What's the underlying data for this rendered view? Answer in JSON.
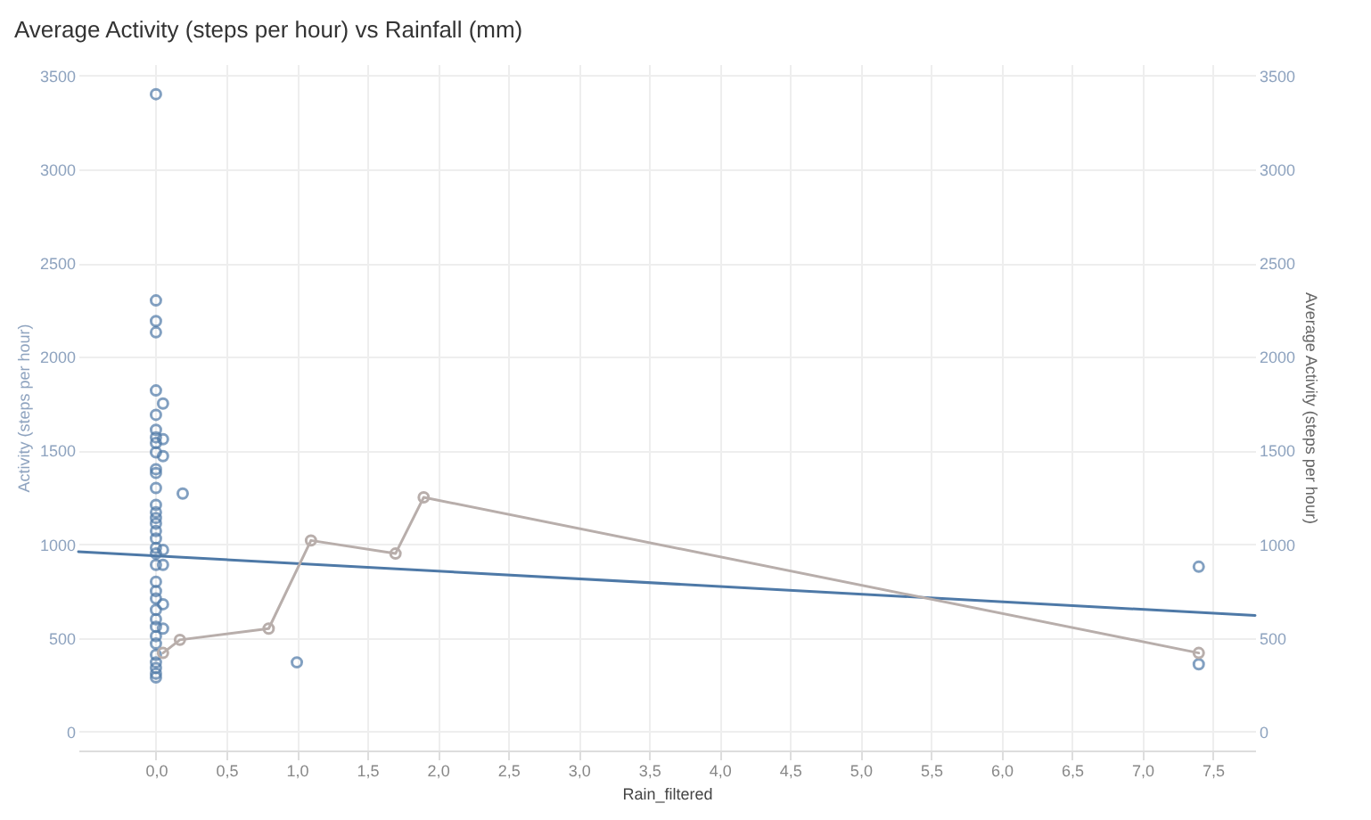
{
  "chart_data": {
    "type": "scatter",
    "title": "Average Activity (steps per hour) vs Rainfall (mm)",
    "xlabel": "Rain_filtered",
    "ylabel": "Activity (steps per hour)",
    "y2label": "Average Activity (steps per hour)",
    "xlim": [
      -0.55,
      7.8
    ],
    "xticks": [
      {
        "value": 0,
        "label": "0,0"
      },
      {
        "value": 0.5,
        "label": "0,5"
      },
      {
        "value": 1,
        "label": "1,0"
      },
      {
        "value": 1.5,
        "label": "1,5"
      },
      {
        "value": 2,
        "label": "2,0"
      },
      {
        "value": 2.5,
        "label": "2,5"
      },
      {
        "value": 3,
        "label": "3,0"
      },
      {
        "value": 3.5,
        "label": "3,5"
      },
      {
        "value": 4,
        "label": "4,0"
      },
      {
        "value": 4.5,
        "label": "4,5"
      },
      {
        "value": 5,
        "label": "5,0"
      },
      {
        "value": 5.5,
        "label": "5,5"
      },
      {
        "value": 6,
        "label": "6,0"
      },
      {
        "value": 6.5,
        "label": "6,5"
      },
      {
        "value": 7,
        "label": "7,0"
      },
      {
        "value": 7.5,
        "label": "7,5"
      }
    ],
    "ylim": [
      -100,
      3560
    ],
    "yticks": [
      0,
      500,
      1000,
      1500,
      2000,
      2500,
      3000,
      3500
    ],
    "y2lim": [
      -100,
      3560
    ],
    "y2ticks": [
      0,
      500,
      1000,
      1500,
      2000,
      2500,
      3000,
      3500
    ],
    "grid": true,
    "marker": "circle",
    "series": [
      {
        "color": "#4e79a7",
        "x": [
          0,
          0,
          0,
          0,
          0,
          0,
          0,
          0,
          0,
          0,
          0,
          0,
          0,
          0,
          0,
          0,
          0,
          0,
          0,
          0,
          0,
          0,
          0,
          0,
          0,
          0,
          0,
          0,
          0,
          0,
          0,
          0,
          0,
          0,
          0,
          0.05,
          0.05,
          0.05,
          0.05,
          0.05,
          0.05,
          0.05,
          0.19,
          1.0,
          7.4,
          7.4
        ],
        "values": [
          3400,
          2300,
          2190,
          2130,
          1820,
          1690,
          1610,
          1570,
          1540,
          1490,
          1400,
          1380,
          1300,
          1210,
          1170,
          1140,
          1110,
          1070,
          1030,
          980,
          950,
          890,
          800,
          750,
          710,
          650,
          600,
          560,
          510,
          470,
          410,
          370,
          340,
          310,
          290,
          1750,
          1560,
          1470,
          970,
          890,
          680,
          550,
          1270,
          370,
          880,
          360
        ]
      },
      {
        "type": "line",
        "color": "#4e79a7",
        "marker": "none",
        "x": [
          -0.55,
          7.8
        ],
        "values": [
          960,
          620
        ]
      },
      {
        "type": "line",
        "color": "#b8aeab",
        "axis": "y2",
        "x": [
          0.05,
          0.17,
          0.8,
          1.1,
          1.7,
          1.9,
          7.4
        ],
        "values": [
          420,
          490,
          550,
          1020,
          950,
          1250,
          420
        ]
      }
    ]
  }
}
